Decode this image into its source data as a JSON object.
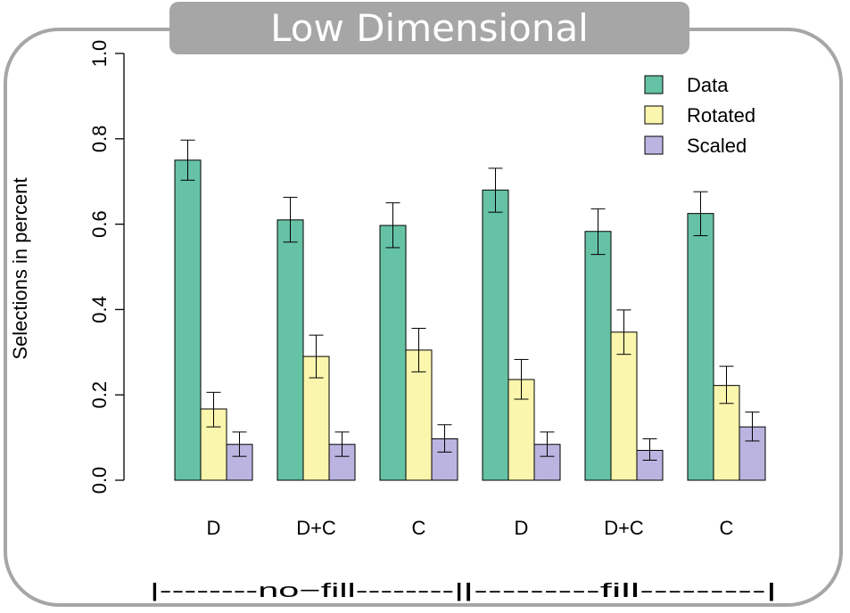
{
  "panel_title": "Low Dimensional",
  "chart_data": {
    "type": "bar",
    "title": "",
    "xlabel": "",
    "ylabel": "Selections in percent",
    "ylim": [
      0,
      1
    ],
    "yticks": [
      "0.0",
      "0.2",
      "0.4",
      "0.6",
      "0.8",
      "1.0"
    ],
    "categories": [
      "D",
      "D+C",
      "C",
      "D",
      "D+C",
      "C"
    ],
    "series": [
      {
        "name": "Data",
        "color": "#66c2a5",
        "values": [
          0.75,
          0.61,
          0.597,
          0.68,
          0.583,
          0.625
        ],
        "err_low": [
          0.703,
          0.558,
          0.545,
          0.628,
          0.529,
          0.573
        ],
        "err_high": [
          0.797,
          0.663,
          0.65,
          0.731,
          0.636,
          0.676
        ]
      },
      {
        "name": "Rotated",
        "color": "#fbf6ad",
        "values": [
          0.167,
          0.29,
          0.305,
          0.236,
          0.347,
          0.222
        ],
        "err_low": [
          0.125,
          0.24,
          0.254,
          0.19,
          0.295,
          0.18
        ],
        "err_high": [
          0.206,
          0.34,
          0.356,
          0.283,
          0.399,
          0.267
        ]
      },
      {
        "name": "Scaled",
        "color": "#bcb4e0",
        "values": [
          0.084,
          0.084,
          0.097,
          0.084,
          0.07,
          0.125
        ],
        "err_low": [
          0.056,
          0.056,
          0.066,
          0.056,
          0.047,
          0.092
        ],
        "err_high": [
          0.113,
          0.113,
          0.13,
          0.113,
          0.097,
          0.16
        ]
      }
    ],
    "legend_position": "top-right",
    "groups": [
      {
        "label": "|--------no−fill--------|"
      },
      {
        "label": "|---------fill---------|"
      }
    ],
    "grid": false
  }
}
